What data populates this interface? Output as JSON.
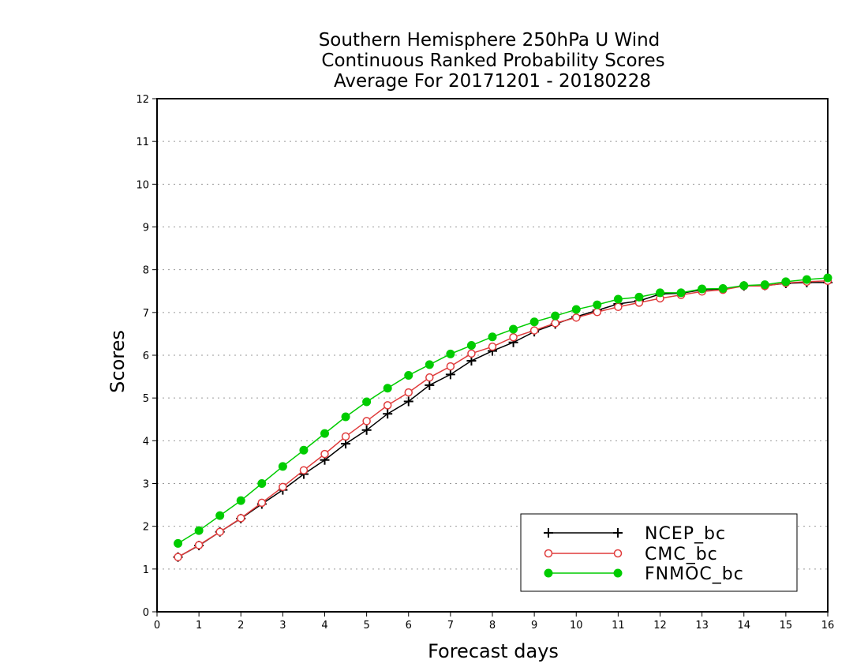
{
  "chart_data": {
    "type": "line",
    "title": [
      "Southern Hemisphere 250hPa U Wind",
      "Continuous Ranked Probability Scores",
      "Average For 20171201 - 20180228"
    ],
    "xlabel": "Forecast days",
    "ylabel": "Scores",
    "xlim": [
      0,
      16
    ],
    "ylim": [
      0,
      12
    ],
    "xticks": [
      "0",
      "1",
      "2",
      "3",
      "4",
      "5",
      "6",
      "7",
      "8",
      "9",
      "10",
      "11",
      "12",
      "13",
      "14",
      "15",
      "16"
    ],
    "yticks": [
      "0",
      "1",
      "2",
      "3",
      "4",
      "5",
      "6",
      "7",
      "8",
      "9",
      "10",
      "11",
      "12"
    ],
    "grid": "horizontal dotted",
    "legend_position": "bottom-right",
    "x": [
      0.5,
      1,
      1.5,
      2,
      2.5,
      3,
      3.5,
      4,
      4.5,
      5,
      5.5,
      6,
      6.5,
      7,
      7.5,
      8,
      8.5,
      9,
      9.5,
      10,
      10.5,
      11,
      11.5,
      12,
      12.5,
      13,
      13.5,
      14,
      14.5,
      15,
      15.5,
      16
    ],
    "series": [
      {
        "name": "NCEP_bc",
        "color": "#000000",
        "marker": "plus",
        "values": [
          1.28,
          1.55,
          1.87,
          2.18,
          2.52,
          2.85,
          3.22,
          3.55,
          3.93,
          4.25,
          4.63,
          4.92,
          5.3,
          5.55,
          5.87,
          6.1,
          6.3,
          6.55,
          6.73,
          6.9,
          7.05,
          7.2,
          7.27,
          7.43,
          7.45,
          7.53,
          7.55,
          7.62,
          7.63,
          7.68,
          7.7,
          7.7
        ]
      },
      {
        "name": "CMC_bc",
        "color": "#e03c3c",
        "marker": "open-circle",
        "values": [
          1.28,
          1.56,
          1.87,
          2.19,
          2.55,
          2.92,
          3.31,
          3.69,
          4.1,
          4.46,
          4.83,
          5.13,
          5.48,
          5.74,
          6.04,
          6.2,
          6.42,
          6.58,
          6.75,
          6.88,
          7.01,
          7.13,
          7.23,
          7.33,
          7.41,
          7.49,
          7.53,
          7.62,
          7.62,
          7.69,
          7.72,
          7.74
        ]
      },
      {
        "name": "FNMOC_bc",
        "color": "#00cc00",
        "marker": "filled-circle",
        "values": [
          1.6,
          1.9,
          2.25,
          2.6,
          3.0,
          3.4,
          3.78,
          4.17,
          4.56,
          4.91,
          5.23,
          5.53,
          5.78,
          6.03,
          6.23,
          6.43,
          6.61,
          6.78,
          6.92,
          7.07,
          7.18,
          7.31,
          7.36,
          7.46,
          7.46,
          7.55,
          7.56,
          7.63,
          7.65,
          7.72,
          7.77,
          7.81
        ]
      }
    ]
  }
}
